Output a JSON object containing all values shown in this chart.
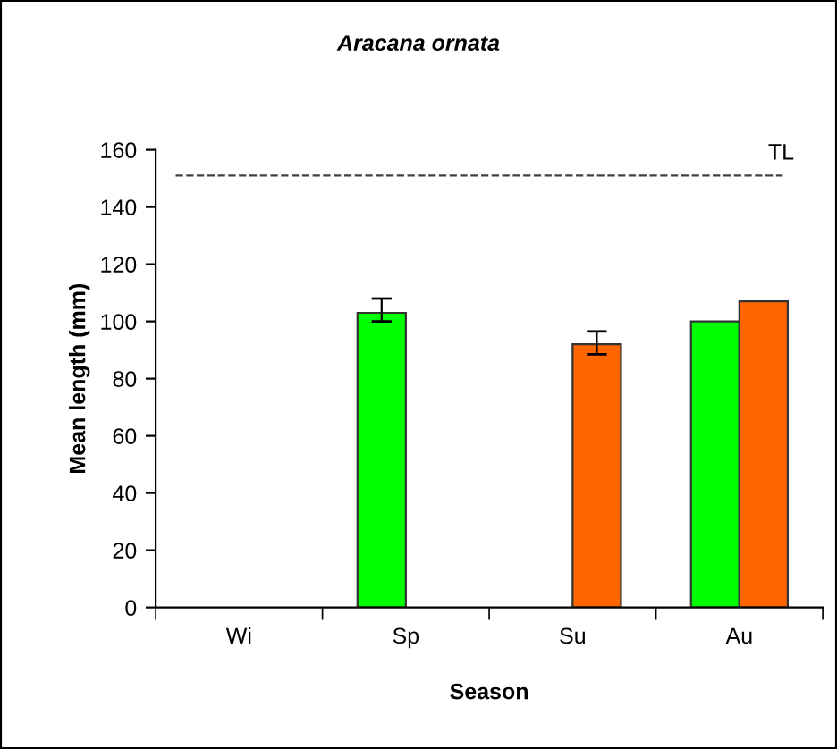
{
  "chart_data": {
    "type": "bar",
    "title": "Aracana ornata",
    "xlabel": "Season",
    "ylabel": "Mean length (mm)",
    "categories": [
      "Wi",
      "Sp",
      "Su",
      "Au"
    ],
    "series": [
      {
        "color": "#00ff00",
        "values": [
          null,
          103,
          null,
          100
        ],
        "errors": [
          null,
          [
            100,
            108
          ],
          null,
          null
        ]
      },
      {
        "color": "#ff6600",
        "values": [
          null,
          null,
          92,
          107
        ],
        "errors": [
          null,
          null,
          [
            88.5,
            96.5
          ],
          null
        ]
      }
    ],
    "ylim": [
      0,
      160
    ],
    "yticks": [
      0,
      20,
      40,
      60,
      80,
      100,
      120,
      140,
      160
    ],
    "ref_lines": [
      {
        "axis": "y",
        "value": 151,
        "label": "TL",
        "color": "#404040",
        "line_style": "dashed"
      }
    ],
    "grid": false,
    "legend": false
  }
}
